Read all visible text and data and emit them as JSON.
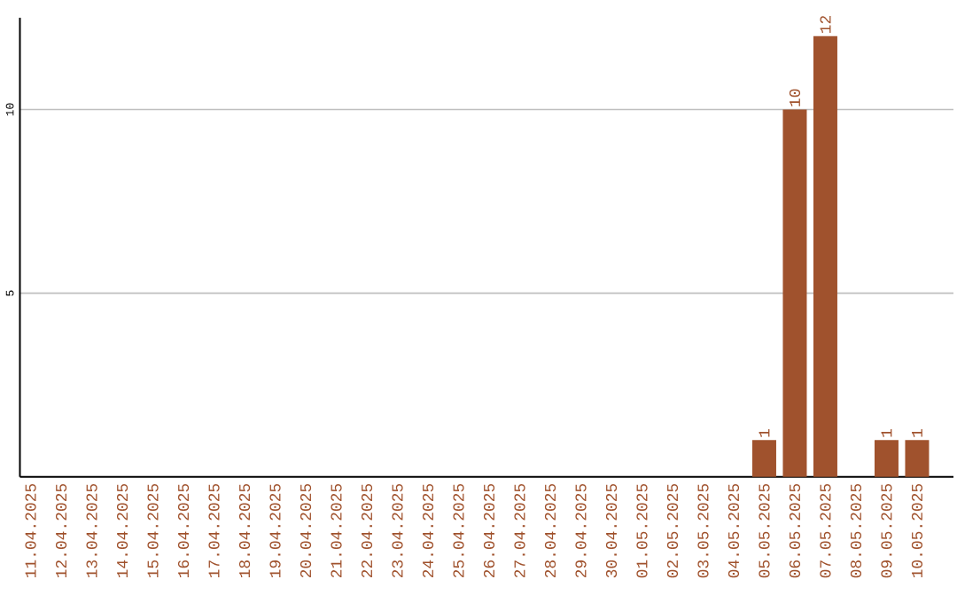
{
  "chart_data": {
    "type": "bar",
    "categories": [
      "11.04.2025",
      "12.04.2025",
      "13.04.2025",
      "14.04.2025",
      "15.04.2025",
      "16.04.2025",
      "17.04.2025",
      "18.04.2025",
      "19.04.2025",
      "20.04.2025",
      "21.04.2025",
      "22.04.2025",
      "23.04.2025",
      "24.04.2025",
      "25.04.2025",
      "26.04.2025",
      "27.04.2025",
      "28.04.2025",
      "29.04.2025",
      "30.04.2025",
      "01.05.2025",
      "02.05.2025",
      "03.05.2025",
      "04.05.2025",
      "05.05.2025",
      "06.05.2025",
      "07.05.2025",
      "08.05.2025",
      "09.05.2025",
      "10.05.2025"
    ],
    "values": [
      0,
      0,
      0,
      0,
      0,
      0,
      0,
      0,
      0,
      0,
      0,
      0,
      0,
      0,
      0,
      0,
      0,
      0,
      0,
      0,
      0,
      0,
      0,
      0,
      1,
      10,
      12,
      0,
      1,
      1
    ],
    "value_labels": [
      null,
      null,
      null,
      null,
      null,
      null,
      null,
      null,
      null,
      null,
      null,
      null,
      null,
      null,
      null,
      null,
      null,
      null,
      null,
      null,
      null,
      null,
      null,
      null,
      "1",
      "10",
      "12",
      null,
      "1",
      "1"
    ],
    "color": "#a0522d",
    "ylim": [
      0,
      12.5
    ],
    "yticks": [
      5,
      10
    ],
    "grid": "y"
  }
}
